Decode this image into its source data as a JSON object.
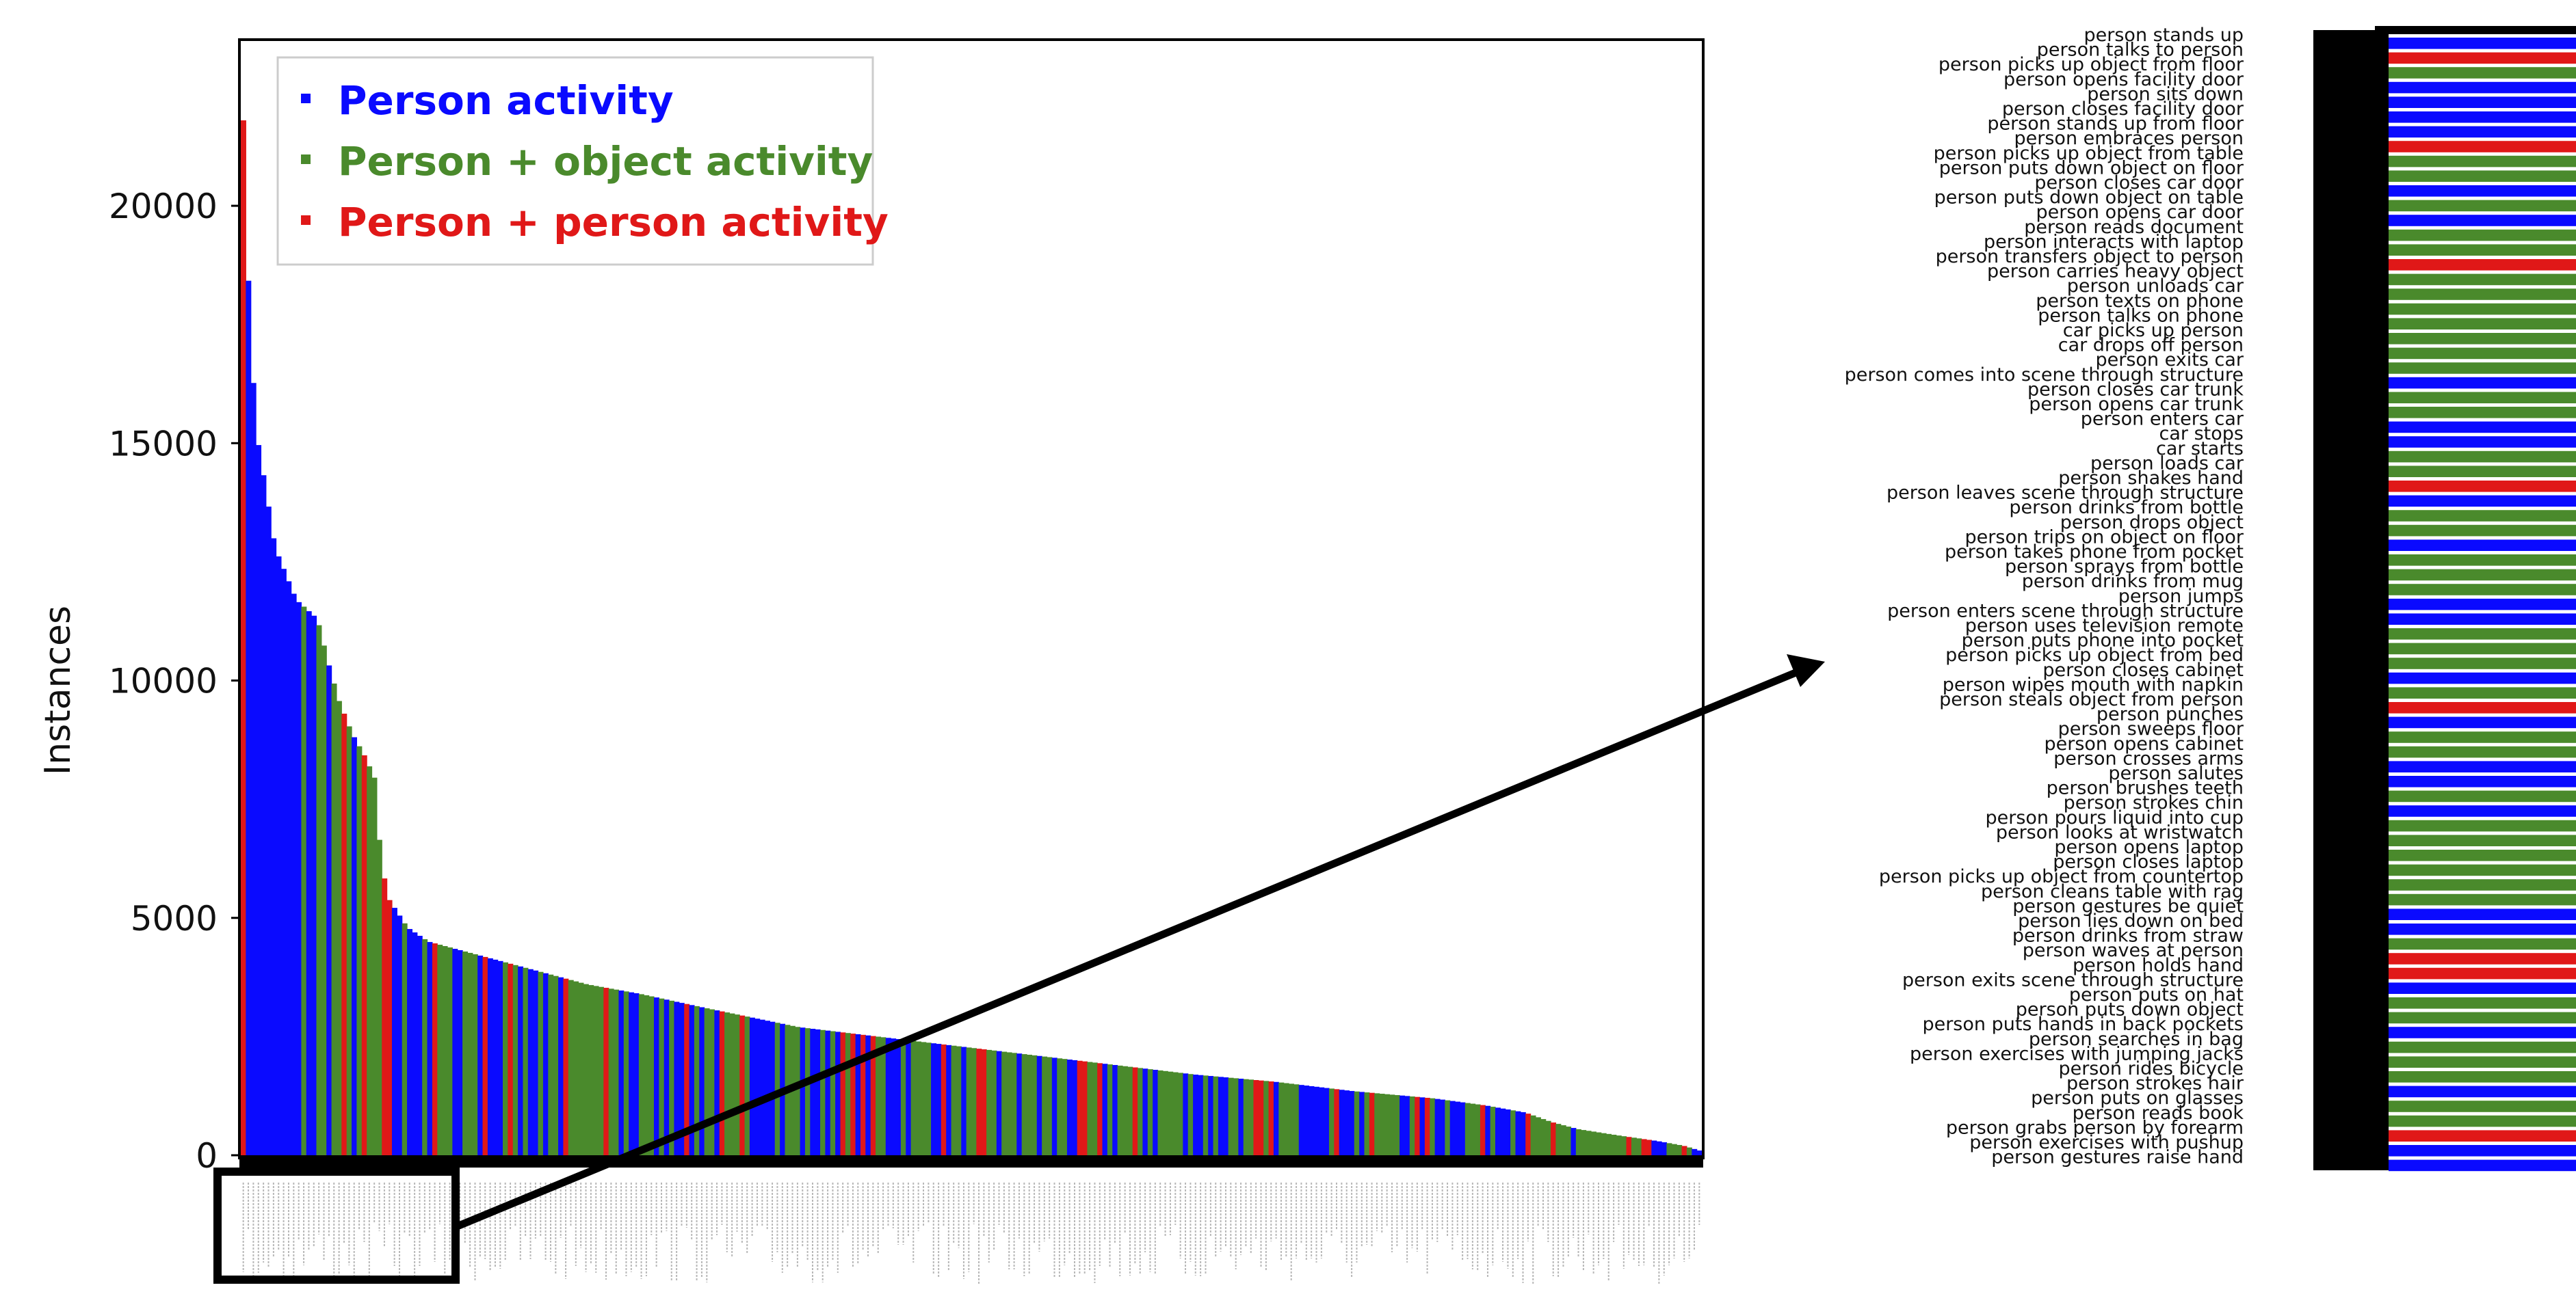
{
  "colors": {
    "person": "#0a0aff",
    "person_object": "#4a8a2c",
    "person_person": "#e01818",
    "frame": "#000000"
  },
  "chart_data": [
    {
      "type": "bar",
      "ylabel": "Instances",
      "ylim": [
        0,
        23500
      ],
      "yticks": [
        0,
        5000,
        10000,
        15000,
        20000
      ],
      "bar_count": 290,
      "legend_position": "top-left",
      "legend": [
        {
          "key": "person",
          "label": "Person activity"
        },
        {
          "key": "person_object",
          "label": "Person + object activity"
        },
        {
          "key": "person_person",
          "label": "Person + person activity"
        }
      ],
      "anchors": [
        [
          0,
          21800
        ],
        [
          1,
          19600
        ],
        [
          3,
          17000
        ],
        [
          5,
          15200
        ],
        [
          8,
          14200
        ],
        [
          12,
          12800
        ],
        [
          20,
          11700
        ],
        [
          28,
          11300
        ],
        [
          32,
          10400
        ],
        [
          36,
          9600
        ],
        [
          41,
          8900
        ],
        [
          46,
          8400
        ],
        [
          50,
          7900
        ],
        [
          52,
          6200
        ],
        [
          55,
          5400
        ],
        [
          62,
          4800
        ],
        [
          70,
          4500
        ],
        [
          90,
          4200
        ],
        [
          110,
          3900
        ],
        [
          130,
          3600
        ],
        [
          150,
          3400
        ],
        [
          175,
          3100
        ],
        [
          210,
          2700
        ],
        [
          240,
          2500
        ],
        [
          270,
          2300
        ],
        [
          300,
          2100
        ],
        [
          330,
          1900
        ],
        [
          360,
          1700
        ],
        [
          390,
          1550
        ],
        [
          420,
          1350
        ],
        [
          450,
          1200
        ],
        [
          470,
          1050
        ],
        [
          485,
          900
        ],
        [
          495,
          700
        ],
        [
          505,
          550
        ],
        [
          520,
          420
        ],
        [
          535,
          300
        ],
        [
          545,
          200
        ],
        [
          551,
          100
        ]
      ]
    },
    {
      "type": "bar",
      "orientation": "horizontal",
      "categories": [
        "person stands up",
        "person talks to person",
        "person picks up object from floor",
        "person opens facility door",
        "person sits down",
        "person closes facility door",
        "person stands up from floor",
        "person embraces person",
        "person picks up object from table",
        "person puts down object on floor",
        "person closes car door",
        "person puts down object on table",
        "person opens car door",
        "person reads document",
        "person interacts with laptop",
        "person transfers object to person",
        "person carries heavy object",
        "person unloads car",
        "person texts on phone",
        "person talks on phone",
        "car picks up person",
        "car drops off person",
        "person exits car",
        "person comes into scene through structure",
        "person closes car trunk",
        "person opens car trunk",
        "person enters car",
        "car stops",
        "car starts",
        "person loads car",
        "person shakes hand",
        "person leaves scene through structure",
        "person drinks from bottle",
        "person drops object",
        "person trips on object on floor",
        "person takes phone from pocket",
        "person sprays from bottle",
        "person drinks from mug",
        "person jumps",
        "person enters scene through structure",
        "person uses television remote",
        "person puts phone into pocket",
        "person picks up object from bed",
        "person closes cabinet",
        "person wipes mouth with napkin",
        "person steals object from person",
        "person punches",
        "person sweeps floor",
        "person opens cabinet",
        "person crosses arms",
        "person salutes",
        "person brushes teeth",
        "person strokes chin",
        "person pours liquid into cup",
        "person looks at wristwatch",
        "person opens laptop",
        "person closes laptop",
        "person picks up object from countertop",
        "person cleans table with rag",
        "person gestures be quiet",
        "person lies down on bed",
        "person drinks from straw",
        "person waves at person",
        "person holds hand",
        "person exits scene through structure",
        "person puts on hat",
        "person puts down object",
        "person puts hands in back pockets",
        "person searches in bag",
        "person exercises with jumping jacks",
        "person rides bicycle",
        "person strokes hair",
        "person puts on glasses",
        "person reads book",
        "person grabs person by forearm",
        "person exercises with pushup",
        "person gestures raise hand"
      ],
      "classes": [
        "person",
        "person_person",
        "person_object",
        "person",
        "person",
        "person",
        "person",
        "person_person",
        "person_object",
        "person_object",
        "person",
        "person_object",
        "person",
        "person_object",
        "person_object",
        "person_person",
        "person_object",
        "person_object",
        "person_object",
        "person_object",
        "person_object",
        "person_object",
        "person_object",
        "person",
        "person_object",
        "person_object",
        "person",
        "person",
        "person_object",
        "person_object",
        "person_person",
        "person",
        "person_object",
        "person_object",
        "person",
        "person_object",
        "person_object",
        "person_object",
        "person",
        "person",
        "person_object",
        "person_object",
        "person_object",
        "person",
        "person_object",
        "person_person",
        "person",
        "person_object",
        "person_object",
        "person",
        "person",
        "person_object",
        "person",
        "person_object",
        "person_object",
        "person_object",
        "person_object",
        "person_object",
        "person_object",
        "person",
        "person",
        "person_object",
        "person_person",
        "person_person",
        "person",
        "person_object",
        "person_object",
        "person",
        "person_object",
        "person_object",
        "person_object",
        "person",
        "person_object",
        "person_object",
        "person_person",
        "person",
        "person"
      ]
    }
  ]
}
